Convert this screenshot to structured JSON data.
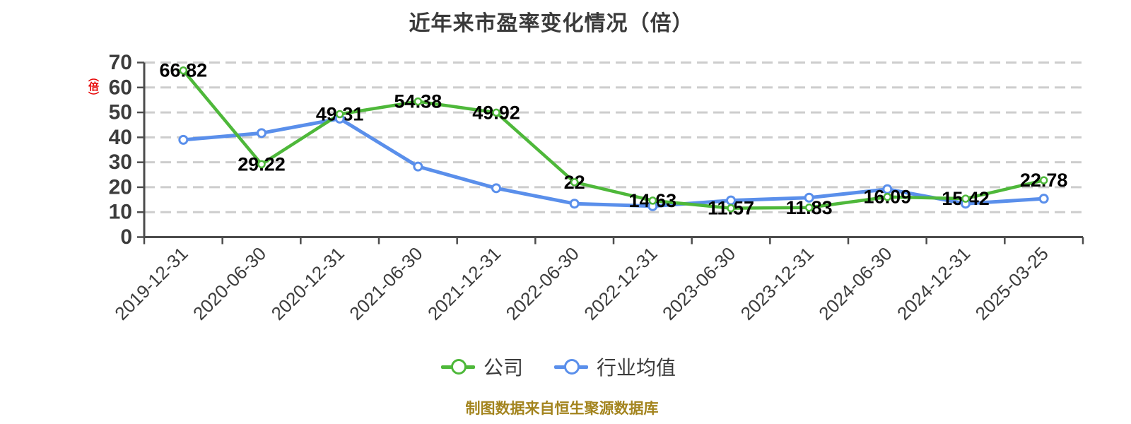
{
  "title": "近年来市盈率变化情况（倍）",
  "y_axis_unit": "（倍）",
  "footer": "制图数据来自恒生聚源数据库",
  "legend": [
    {
      "label": "公司",
      "color": "#4eb83a"
    },
    {
      "label": "行业均值",
      "color": "#5a8feb"
    }
  ],
  "colors": {
    "company_green": "#4eb83a",
    "industry_blue": "#5a8feb",
    "grid": "#cdcdcd",
    "axis": "#4c4c4c",
    "tick_label": "#3c3c3c",
    "data_label": "#000000",
    "title_text": "#3a3a3a",
    "unit_red": "#e60000",
    "footer_gold": "#a3841e",
    "background": "#ffffff"
  },
  "chart_data": {
    "type": "line",
    "title": "近年来市盈率变化情况（倍）",
    "xlabel": "",
    "ylabel": "（倍）",
    "ylim": [
      0,
      70
    ],
    "y_ticks": [
      0,
      10,
      20,
      30,
      40,
      50,
      60,
      70
    ],
    "grid": "dashed-horizontal",
    "legend_position": "bottom",
    "categories": [
      "2019-12-31",
      "2020-06-30",
      "2020-12-31",
      "2021-06-30",
      "2021-12-31",
      "2022-06-30",
      "2022-12-31",
      "2023-06-30",
      "2023-12-31",
      "2024-06-30",
      "2024-12-31",
      "2025-03-25"
    ],
    "series": [
      {
        "name": "公司",
        "color": "#4eb83a",
        "values": [
          66.82,
          29.22,
          49.31,
          54.38,
          49.92,
          22,
          14.63,
          11.57,
          11.83,
          16.09,
          15.42,
          22.78
        ],
        "labels": [
          "66.82",
          "29.22",
          "49.31",
          "54.38",
          "49.92",
          "22",
          "14.63",
          "11.57",
          "11.83",
          "16.09",
          "15.42",
          "22.78"
        ],
        "show_labels": true
      },
      {
        "name": "行业均值",
        "color": "#5a8feb",
        "values": [
          39.0,
          41.7,
          47.5,
          28.3,
          19.6,
          13.4,
          12.4,
          14.7,
          15.8,
          19.2,
          13.4,
          15.4
        ],
        "labels": [],
        "show_labels": false
      }
    ]
  }
}
